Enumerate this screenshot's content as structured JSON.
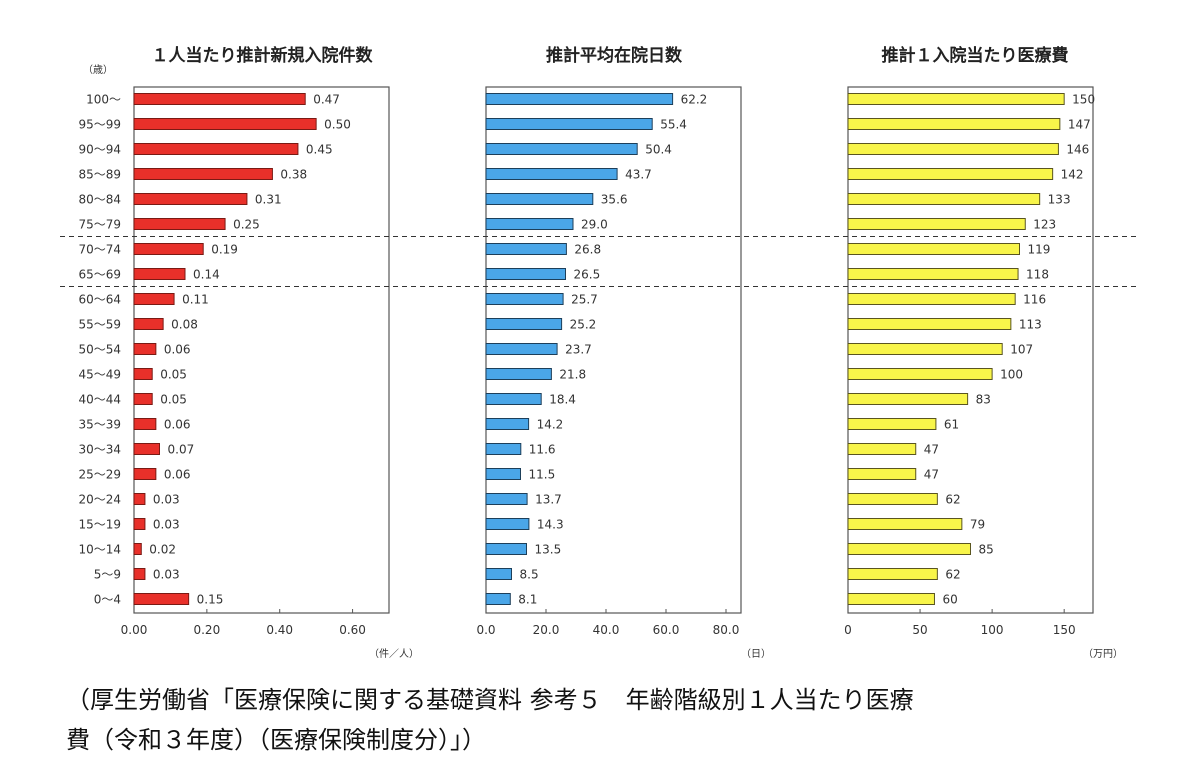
{
  "age_unit_label": "（歳）",
  "age_groups": [
    "100～",
    "95～99",
    "90～94",
    "85～89",
    "80～84",
    "75～79",
    "70～74",
    "65～69",
    "60～64",
    "55～59",
    "50～54",
    "45～49",
    "40～44",
    "35～39",
    "30～34",
    "25～29",
    "20～24",
    "15～19",
    "10～14",
    "5～9",
    "0～4"
  ],
  "separators_after_index": [
    5,
    7
  ],
  "chart_data": [
    {
      "type": "bar",
      "orientation": "horizontal",
      "title": "１人当たり推計新規入院件数",
      "categories": [
        "100～",
        "95～99",
        "90～94",
        "85～89",
        "80～84",
        "75～79",
        "70～74",
        "65～69",
        "60～64",
        "55～59",
        "50～54",
        "45～49",
        "40～44",
        "35～39",
        "30～34",
        "25～29",
        "20～24",
        "15～19",
        "10～14",
        "5～9",
        "0～4"
      ],
      "values": [
        0.47,
        0.5,
        0.45,
        0.38,
        0.31,
        0.25,
        0.19,
        0.14,
        0.11,
        0.08,
        0.06,
        0.05,
        0.05,
        0.06,
        0.07,
        0.06,
        0.03,
        0.03,
        0.02,
        0.03,
        0.15
      ],
      "value_labels": [
        "0.47",
        "0.50",
        "0.45",
        "0.38",
        "0.31",
        "0.25",
        "0.19",
        "0.14",
        "0.11",
        "0.08",
        "0.06",
        "0.05",
        "0.05",
        "0.06",
        "0.07",
        "0.06",
        "0.03",
        "0.03",
        "0.02",
        "0.03",
        "0.15"
      ],
      "xlim": [
        0,
        0.7
      ],
      "xticks": [
        0,
        0.2,
        0.4,
        0.6
      ],
      "xtick_labels": [
        "0.00",
        "0.20",
        "0.40",
        "0.60"
      ],
      "xlabel": "（件／人）",
      "ylabel": "（歳）",
      "color": "#e8302a",
      "grid": false
    },
    {
      "type": "bar",
      "orientation": "horizontal",
      "title": "推計平均在院日数",
      "categories": [
        "100～",
        "95～99",
        "90～94",
        "85～89",
        "80～84",
        "75～79",
        "70～74",
        "65～69",
        "60～64",
        "55～59",
        "50～54",
        "45～49",
        "40～44",
        "35～39",
        "30～34",
        "25～29",
        "20～24",
        "15～19",
        "10～14",
        "5～9",
        "0～4"
      ],
      "values": [
        62.2,
        55.4,
        50.4,
        43.7,
        35.6,
        29.0,
        26.8,
        26.5,
        25.7,
        25.2,
        23.7,
        21.8,
        18.4,
        14.2,
        11.6,
        11.5,
        13.7,
        14.3,
        13.5,
        8.5,
        8.1
      ],
      "value_labels": [
        "62.2",
        "55.4",
        "50.4",
        "43.7",
        "35.6",
        "29.0",
        "26.8",
        "26.5",
        "25.7",
        "25.2",
        "23.7",
        "21.8",
        "18.4",
        "14.2",
        "11.6",
        "11.5",
        "13.7",
        "14.3",
        "13.5",
        "8.5",
        "8.1"
      ],
      "xlim": [
        0,
        85
      ],
      "xticks": [
        0,
        20,
        40,
        60,
        80
      ],
      "xtick_labels": [
        "0.0",
        "20.0",
        "40.0",
        "60.0",
        "80.0"
      ],
      "xlabel": "（日）",
      "color": "#4aa6e8",
      "grid": false
    },
    {
      "type": "bar",
      "orientation": "horizontal",
      "title": "推計１入院当たり医療費",
      "categories": [
        "100～",
        "95～99",
        "90～94",
        "85～89",
        "80～84",
        "75～79",
        "70～74",
        "65～69",
        "60～64",
        "55～59",
        "50～54",
        "45～49",
        "40～44",
        "35～39",
        "30～34",
        "25～29",
        "20～24",
        "15～19",
        "10～14",
        "5～9",
        "0～4"
      ],
      "values": [
        150,
        147,
        146,
        142,
        133,
        123,
        119,
        118,
        116,
        113,
        107,
        100,
        83,
        61,
        47,
        47,
        62,
        79,
        85,
        62,
        60
      ],
      "value_labels": [
        "150",
        "147",
        "146",
        "142",
        "133",
        "123",
        "119",
        "118",
        "116",
        "113",
        "107",
        "100",
        "83",
        "61",
        "47",
        "47",
        "62",
        "79",
        "85",
        "62",
        "60"
      ],
      "xlim": [
        0,
        170
      ],
      "xticks": [
        0,
        50,
        100,
        150
      ],
      "xtick_labels": [
        "0",
        "50",
        "100",
        "150"
      ],
      "xlabel": "（万円）",
      "color": "#f8f54a",
      "grid": false
    }
  ],
  "caption": {
    "line1": "（厚生労働省「医療保険に関する基礎資料 参考５　年齢階級別１人当たり医療",
    "line2": "費（令和３年度）（医療保険制度分）」）"
  }
}
